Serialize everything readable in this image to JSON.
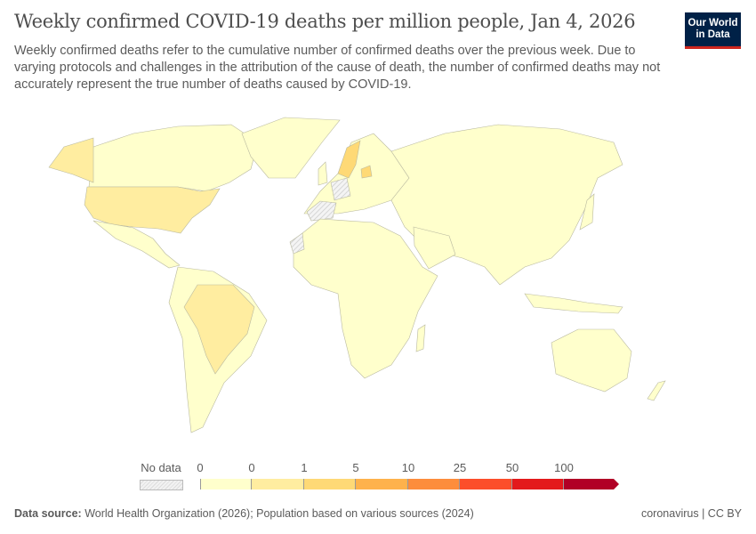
{
  "header": {
    "title": "Weekly confirmed COVID-19 deaths per million people, Jan 4, 2026",
    "subtitle": "Weekly confirmed deaths refer to the cumulative number of confirmed deaths over the previous week. Due to varying protocols and challenges in the attribution of the cause of death, the number of confirmed deaths may not accurately represent the true number of deaths caused by COVID-19.",
    "logo": "Our World in Data"
  },
  "legend": {
    "no_data_label": "No data",
    "bins": [
      "0",
      "0",
      "1",
      "5",
      "10",
      "25",
      "50",
      "100"
    ],
    "colors": [
      "#ffffcc",
      "#ffeda0",
      "#fed976",
      "#feb24c",
      "#fd8d3c",
      "#fc4e2a",
      "#e31a1c",
      "#b10026"
    ],
    "no_data_pattern": "hatched-gray"
  },
  "map": {
    "default_color": "#ffffcc",
    "highlight_regions": {
      "United States": "#ffeda0",
      "Alaska": "#ffeda0",
      "Brazil": "#ffeda0",
      "Uruguay": "#ffeda0",
      "Sweden": "#fed976",
      "Latvia/Lithuania": "#fed976"
    },
    "no_data_regions": [
      "Spain",
      "Western Sahara",
      "Germany area"
    ]
  },
  "footer": {
    "source_label": "Data source:",
    "source_text": "World Health Organization (2026); Population based on various sources (2024)",
    "right": "coronavirus | CC BY"
  }
}
